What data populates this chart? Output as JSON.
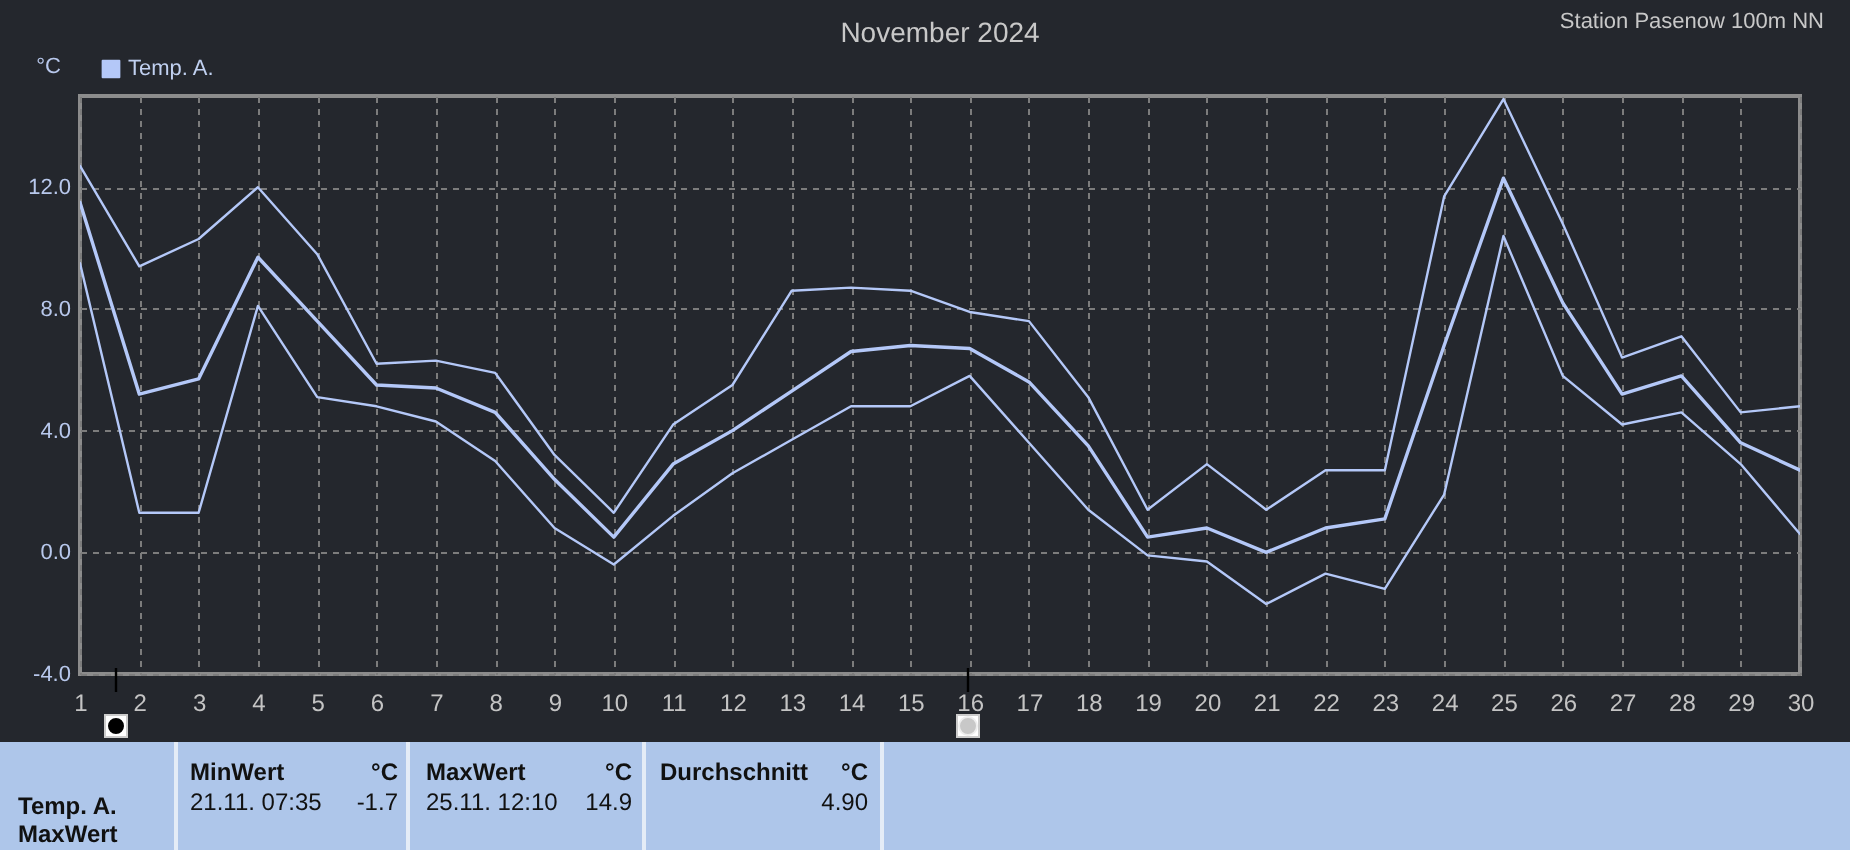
{
  "chart_data": {
    "type": "line",
    "title": "November 2024",
    "ylabel": "°C",
    "x": [
      1,
      2,
      3,
      4,
      5,
      6,
      7,
      8,
      9,
      10,
      11,
      12,
      13,
      14,
      15,
      16,
      17,
      18,
      19,
      20,
      21,
      22,
      23,
      24,
      25,
      26,
      27,
      28,
      29,
      30
    ],
    "xlim": [
      1,
      30
    ],
    "xticks": [
      1,
      2,
      3,
      4,
      5,
      6,
      7,
      8,
      9,
      10,
      11,
      12,
      13,
      14,
      15,
      16,
      17,
      18,
      19,
      20,
      21,
      22,
      23,
      24,
      25,
      26,
      27,
      28,
      29,
      30
    ],
    "ylim": [
      -4,
      15
    ],
    "yticks": [
      {
        "value": -4,
        "label": "-4.0"
      },
      {
        "value": 0,
        "label": "0.0"
      },
      {
        "value": 4,
        "label": "4.0"
      },
      {
        "value": 8,
        "label": "8.0"
      },
      {
        "value": 12,
        "label": "12.0"
      }
    ],
    "series": [
      {
        "color": "#b4c8f8",
        "values": [
          12.7,
          9.4,
          10.3,
          12.0,
          9.8,
          6.2,
          6.3,
          5.9,
          3.2,
          1.3,
          4.2,
          5.5,
          8.6,
          8.7,
          8.6,
          7.9,
          7.6,
          5.1,
          1.4,
          2.9,
          1.4,
          2.7,
          2.7,
          11.7,
          14.9,
          10.8,
          6.4,
          7.1,
          4.6,
          4.8
        ]
      },
      {
        "name": "Temp. A.",
        "color": "#b4c8f8",
        "values": [
          11.5,
          5.2,
          5.7,
          9.7,
          7.6,
          5.5,
          5.4,
          4.6,
          2.4,
          0.5,
          2.9,
          4.0,
          5.3,
          6.6,
          6.8,
          6.7,
          5.6,
          3.5,
          0.5,
          0.8,
          0.0,
          0.8,
          1.1,
          6.8,
          12.3,
          8.2,
          5.2,
          5.8,
          3.6,
          2.7
        ]
      },
      {
        "color": "#b4c8f8",
        "values": [
          9.5,
          1.3,
          1.3,
          8.1,
          5.1,
          4.8,
          4.3,
          3.0,
          0.8,
          -0.4,
          1.2,
          2.6,
          3.7,
          4.8,
          4.8,
          5.8,
          3.6,
          1.4,
          -0.1,
          -0.3,
          -1.7,
          -0.7,
          -1.2,
          1.9,
          10.4,
          5.8,
          4.2,
          4.6,
          2.9,
          0.6
        ]
      }
    ],
    "grid": true,
    "legend": "top left",
    "annotations": [
      "Station Pasenow 100m NN",
      "Temp. A.",
      "MaxWert",
      "MinWert",
      "°C",
      "21.11. 07:35",
      "-1.7",
      "MaxWert",
      "°C",
      "25.11. 12:10",
      "14.9",
      "Durchschnitt",
      "°C",
      "4.90"
    ]
  }
}
